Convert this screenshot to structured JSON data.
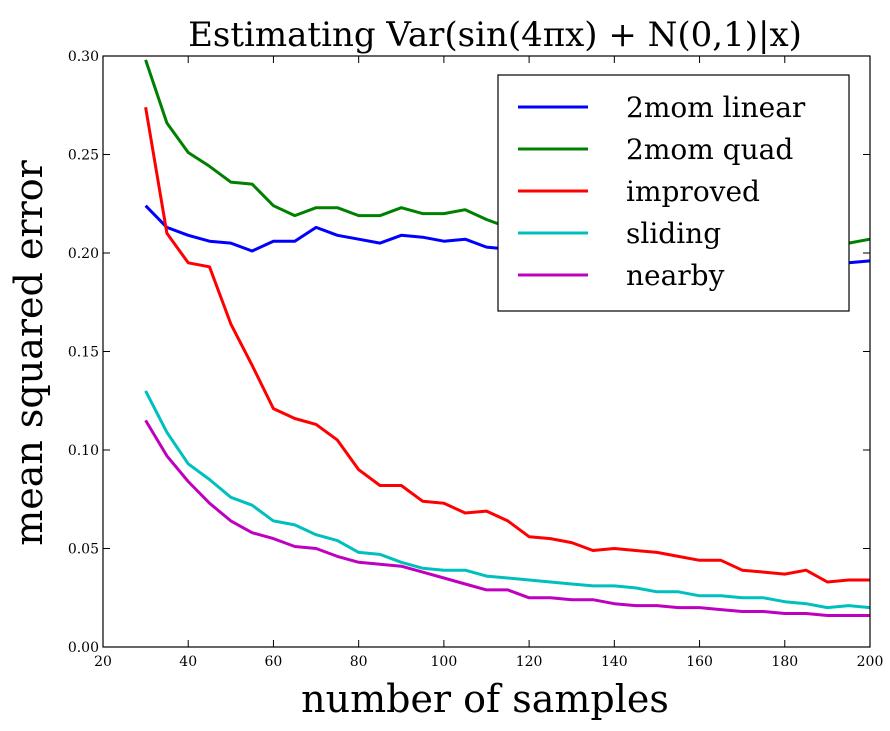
{
  "chart_data": {
    "type": "line",
    "title": "Estimating Var(sin(4πx) + N(0,1)|x)",
    "xlabel": "number of samples",
    "ylabel": "mean squared error",
    "xlim": [
      20,
      200
    ],
    "ylim": [
      0.0,
      0.3
    ],
    "xticks": [
      "20",
      "40",
      "60",
      "80",
      "100",
      "120",
      "140",
      "160",
      "180",
      "200"
    ],
    "yticks": [
      "0.00",
      "0.05",
      "0.10",
      "0.15",
      "0.20",
      "0.25",
      "0.30"
    ],
    "grid": false,
    "legend_position": "top-right",
    "x": [
      30,
      35,
      40,
      45,
      50,
      55,
      60,
      65,
      70,
      75,
      80,
      85,
      90,
      95,
      100,
      105,
      110,
      115,
      120,
      125,
      130,
      135,
      140,
      145,
      150,
      155,
      160,
      165,
      170,
      175,
      180,
      185,
      190,
      195,
      200
    ],
    "series": [
      {
        "name": "2mom linear",
        "color": "#0000ff",
        "values": [
          0.224,
          0.213,
          0.209,
          0.206,
          0.205,
          0.201,
          0.206,
          0.206,
          0.213,
          0.209,
          0.207,
          0.205,
          0.209,
          0.208,
          0.206,
          0.207,
          0.203,
          0.202,
          0.201,
          0.2,
          0.201,
          0.199,
          0.2,
          0.199,
          0.198,
          0.199,
          0.197,
          0.198,
          0.197,
          0.196,
          0.196,
          0.195,
          0.194,
          0.195,
          0.196
        ]
      },
      {
        "name": "2mom quad",
        "color": "#008000",
        "values": [
          0.298,
          0.266,
          0.251,
          0.244,
          0.236,
          0.235,
          0.224,
          0.219,
          0.223,
          0.223,
          0.219,
          0.219,
          0.223,
          0.22,
          0.22,
          0.222,
          0.217,
          0.213,
          0.212,
          0.211,
          0.21,
          0.209,
          0.21,
          0.209,
          0.208,
          0.209,
          0.207,
          0.208,
          0.206,
          0.206,
          0.205,
          0.205,
          0.204,
          0.205,
          0.207
        ]
      },
      {
        "name": "improved",
        "color": "#ff0000",
        "values": [
          0.274,
          0.21,
          0.195,
          0.193,
          0.164,
          0.143,
          0.121,
          0.116,
          0.113,
          0.105,
          0.09,
          0.082,
          0.082,
          0.074,
          0.073,
          0.068,
          0.069,
          0.064,
          0.056,
          0.055,
          0.053,
          0.049,
          0.05,
          0.049,
          0.048,
          0.046,
          0.044,
          0.044,
          0.039,
          0.038,
          0.037,
          0.039,
          0.033,
          0.034,
          0.034
        ]
      },
      {
        "name": "sliding",
        "color": "#00bfbf",
        "values": [
          0.13,
          0.109,
          0.093,
          0.085,
          0.076,
          0.072,
          0.064,
          0.062,
          0.057,
          0.054,
          0.048,
          0.047,
          0.043,
          0.04,
          0.039,
          0.039,
          0.036,
          0.035,
          0.034,
          0.033,
          0.032,
          0.031,
          0.031,
          0.03,
          0.028,
          0.028,
          0.026,
          0.026,
          0.025,
          0.025,
          0.023,
          0.022,
          0.02,
          0.021,
          0.02
        ]
      },
      {
        "name": "nearby",
        "color": "#bf00bf",
        "values": [
          0.115,
          0.097,
          0.084,
          0.073,
          0.064,
          0.058,
          0.055,
          0.051,
          0.05,
          0.046,
          0.043,
          0.042,
          0.041,
          0.038,
          0.035,
          0.032,
          0.029,
          0.029,
          0.025,
          0.025,
          0.024,
          0.024,
          0.022,
          0.021,
          0.021,
          0.02,
          0.02,
          0.019,
          0.018,
          0.018,
          0.017,
          0.017,
          0.016,
          0.016,
          0.016
        ]
      }
    ]
  }
}
